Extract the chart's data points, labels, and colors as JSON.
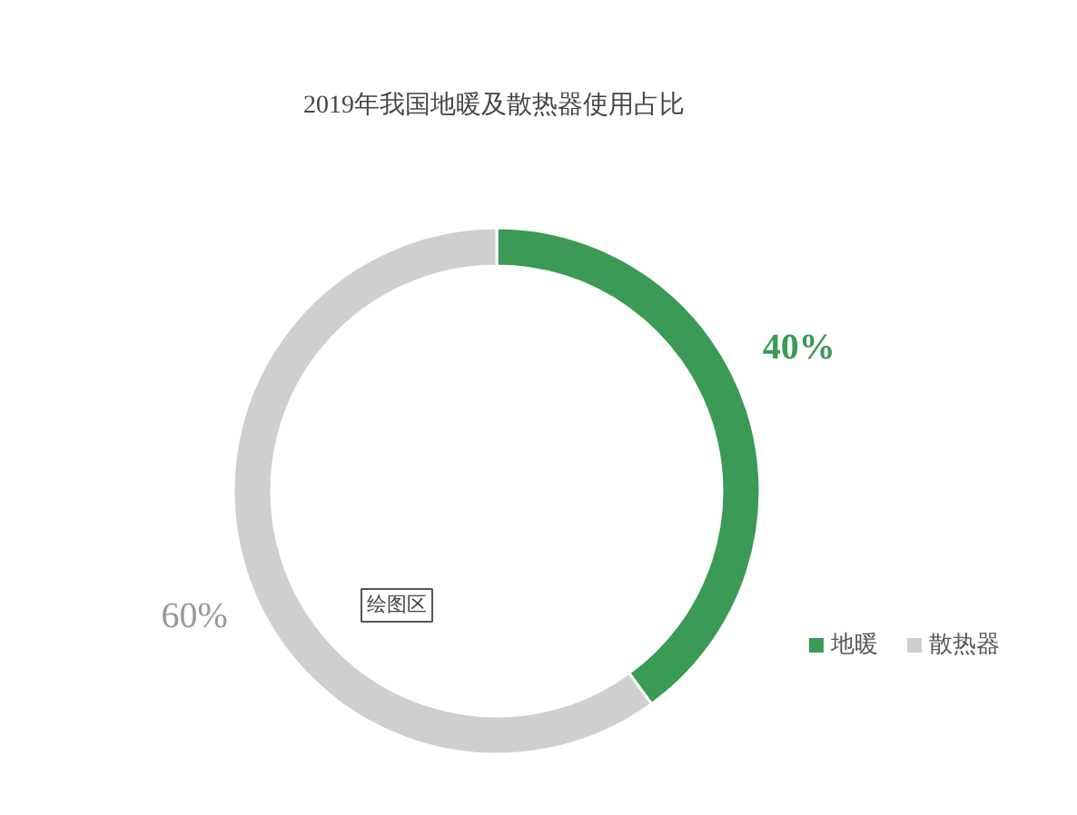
{
  "chart_data": {
    "type": "donut",
    "title": "2019年我国地暖及散热器使用占比",
    "categories": [
      "地暖",
      "散热器"
    ],
    "values": [
      40,
      60
    ],
    "colors": [
      "#3a9a56",
      "#d0cfcf"
    ],
    "value_labels": [
      "40%",
      "60%"
    ],
    "legend": "right",
    "annotations": [
      "绘图区"
    ]
  }
}
